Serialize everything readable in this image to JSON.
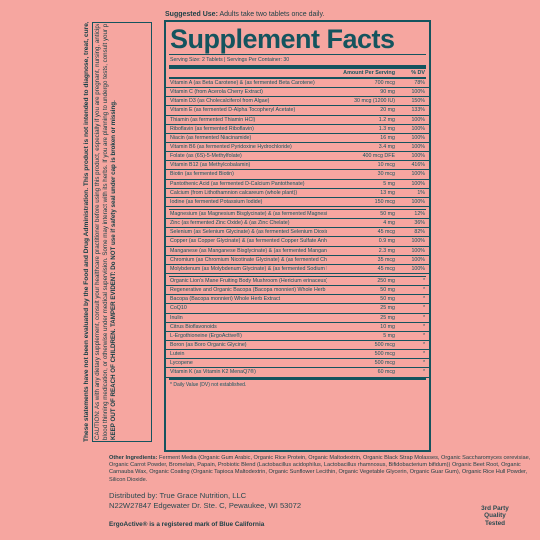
{
  "suggested_use": {
    "label": "Suggested Use:",
    "text": "Adults take two tablets once daily."
  },
  "warnings": {
    "fda": "These statements have not been evaluated by the Food and Drug Administration. This product is not intended to diagnose, treat, cure, or prevent any disease.",
    "caution_lines": [
      "CAUTION: As with any dietary supplement, consult your healthcare practitioner before using this product, especially if you are pregnant, nursing, anticipating surgery, taking medication on a regular basis, taking",
      "blood thinning medication, or otherwise under medical supervision. Some may interact with its herbs. If you are planning to undergo tests, consult your physician before"
    ],
    "keep_out": "KEEP OUT OF REACH OF CHILDREN. TAMPER EVIDENT: Do NOT use if safety seal under cap is broken or missing."
  },
  "facts": {
    "title": "Supplement Facts",
    "serving": "Serving Size: 2 Tablets  |  Servings Per Container: 30",
    "col_amount": "Amount Per Serving",
    "col_dv": "% DV",
    "vitamins": [
      {
        "name": "Vitamin A (as Beta Carotene) & (as fermented Beta Carotene)",
        "amt": "700 mcg",
        "dv": "78%"
      },
      {
        "name": "Vitamin C (from Acerola Cherry Extract)",
        "amt": "90 mg",
        "dv": "100%"
      },
      {
        "name": "Vitamin D3 (as Cholecalciferol from Algae)",
        "amt": "30 mcg (1200 IU)",
        "dv": "150%"
      },
      {
        "name": "Vitamin E (as fermented D-Alpha Tocopheryl Acetate)",
        "amt": "20 mg",
        "dv": "133%"
      },
      {
        "name": "Thiamin (as fermented Thiamin HCl)",
        "amt": "1.2 mg",
        "dv": "100%"
      },
      {
        "name": "Riboflavin (as fermented Riboflavin)",
        "amt": "1.3 mg",
        "dv": "100%"
      },
      {
        "name": "Niacin (as fermented Niacinamide)",
        "amt": "16 mg",
        "dv": "100%"
      },
      {
        "name": "Vitamin B6 (as fermented Pyridoxine Hydrochloride)",
        "amt": "3.4 mg",
        "dv": "100%"
      },
      {
        "name": "Folate (as (6S)-5-Methylfolate)",
        "amt": "400 mcg DFE",
        "dv": "100%"
      },
      {
        "name": "Vitamin B12 (as Methylcobalamin)",
        "amt": "10 mcg",
        "dv": "416%"
      },
      {
        "name": "Biotin (as fermented Biotin)",
        "amt": "30 mcg",
        "dv": "100%"
      },
      {
        "name": "Pantothenic Acid (as fermented D-Calcium Pantothenate)",
        "amt": "5 mg",
        "dv": "100%"
      },
      {
        "name": "Calcium (from Lithothamnion calcareum (whole plant))",
        "amt": "13 mg",
        "dv": "1%"
      },
      {
        "name": "Iodine (as fermented Potassium Iodide)",
        "amt": "150 mcg",
        "dv": "100%"
      }
    ],
    "minerals": [
      {
        "name": "Magnesium (as Magnesium Bisglycinate) & (as fermented Magnesium Oxide)",
        "amt": "50 mg",
        "dv": "12%"
      },
      {
        "name": "Zinc (as fermented Zinc Oxide) & (as Zinc Chelate)",
        "amt": "4 mg",
        "dv": "36%"
      },
      {
        "name": "Selenium (as Selenium Glycinate) & (as fermented Selenium Dioxide)",
        "amt": "45 mcg",
        "dv": "82%"
      },
      {
        "name": "Copper (as Copper Glycinate) & (as fermented Copper Sulfate Anhydrous)",
        "amt": "0.9 mg",
        "dv": "100%"
      },
      {
        "name": "Manganese (as Manganese Bisglycinate) & (as fermented Manganese Chloride)",
        "amt": "2.3 mg",
        "dv": "100%"
      },
      {
        "name": "Chromium (as Chromium Nicotinate Glycinate) & (as fermented Chromium Chloride)",
        "amt": "35 mcg",
        "dv": "100%"
      },
      {
        "name": "Molybdenum (as Molybdenum Glycinate) & (as fermented Sodium Molybdate)",
        "amt": "45 mcg",
        "dv": "100%"
      }
    ],
    "others": [
      {
        "name": "Organic Lion's Mane Fruiting Body Mushroom (Hericium erinaceus) Powder",
        "amt": "250 mg",
        "dv": "*"
      },
      {
        "name": "Regenerative and Organic Bacopa (Bacopa monnieri) Whole Herb Powder",
        "amt": "50 mg",
        "dv": "*"
      },
      {
        "name": "Bacopa (Bacopa monnieri) Whole Herb Extract",
        "amt": "50 mg",
        "dv": "*"
      },
      {
        "name": "CoQ10",
        "amt": "25 mg",
        "dv": "*"
      },
      {
        "name": "Inulin",
        "amt": "25 mg",
        "dv": "*"
      },
      {
        "name": "Citrus Bioflavonoids",
        "amt": "10 mg",
        "dv": "*"
      },
      {
        "name": "L-Ergothioneine (ErgoActive®)",
        "amt": "5 mg",
        "dv": "*"
      },
      {
        "name": "Boron (as Boro Organic Glycine)",
        "amt": "500 mcg",
        "dv": "*"
      },
      {
        "name": "Lutein",
        "amt": "500 mcg",
        "dv": "*"
      },
      {
        "name": "Lycopene",
        "amt": "500 mcg",
        "dv": "*"
      },
      {
        "name": "Vitamin K (as Vitamin K2 MenaQ7®)",
        "amt": "60 mcg",
        "dv": "*"
      }
    ],
    "dv_note": "* Daily Value (DV) not established."
  },
  "other_ingredients": {
    "label": "Other Ingredients:",
    "text": "Ferment Media (Organic Gum Arabic, Organic Rice Protein, Organic Maltodextrin, Organic Black Strap Molasses, Organic Saccharomyces cerevisiae, Organic Carrot Powder, Bromelain, Papain, Probiotic Blend (Lactobacillus acidophilus, Lactobacillus rhamnosus, Bifidobacterium bifidum)) Organic Beet Root, Organic Carnauba Wax, Organic Coating (Organic Tapioca Maltodextrin, Organic Sunflower Lecithin, Organic Vegetable Glycerin, Organic Guar Gum), Organic Rice Hull Powder, Silicon Dioxide."
  },
  "distributor": {
    "line1": "Distributed by: True Grace Nutrition, LLC",
    "line2": "N22W27847 Edgewater Dr. Ste. C, Pewaukee, WI 53072"
  },
  "trademark": "ErgoActive® is a registered mark of Blue California",
  "tested": [
    "3rd Party",
    "Quality",
    "Tested"
  ]
}
